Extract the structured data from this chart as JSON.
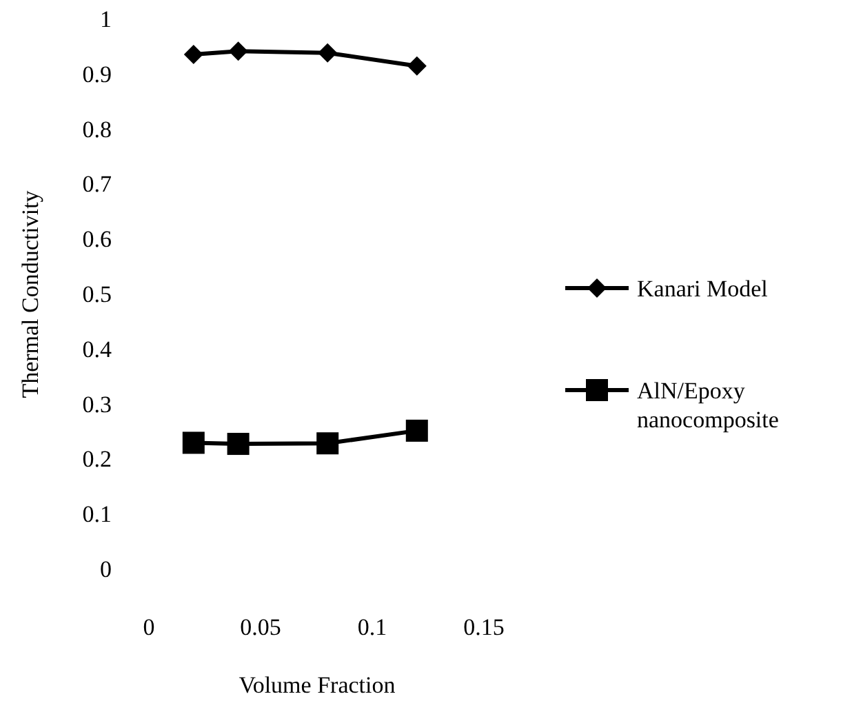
{
  "chart_data": {
    "type": "line",
    "xlabel": "Volume Fraction",
    "ylabel": "Thermal Conductivity",
    "x": [
      0.02,
      0.04,
      0.08,
      0.12
    ],
    "xlim": [
      0,
      0.15
    ],
    "xticks": [
      0,
      0.05,
      0.1,
      0.15
    ],
    "ylim": [
      0,
      1
    ],
    "yticks": [
      0,
      0.1,
      0.2,
      0.3,
      0.4,
      0.5,
      0.6,
      0.7,
      0.8,
      0.9,
      1
    ],
    "series": [
      {
        "name": "Kanari Model",
        "color": "#000000",
        "marker": "diamond",
        "values": [
          0.936,
          0.942,
          0.939,
          0.915
        ]
      },
      {
        "name": "AlN/Epoxy nanocomposite",
        "color": "#000000",
        "marker": "square",
        "values": [
          0.23,
          0.228,
          0.229,
          0.252
        ]
      }
    ],
    "grid": false,
    "legend": "right",
    "line_style": "solid"
  }
}
